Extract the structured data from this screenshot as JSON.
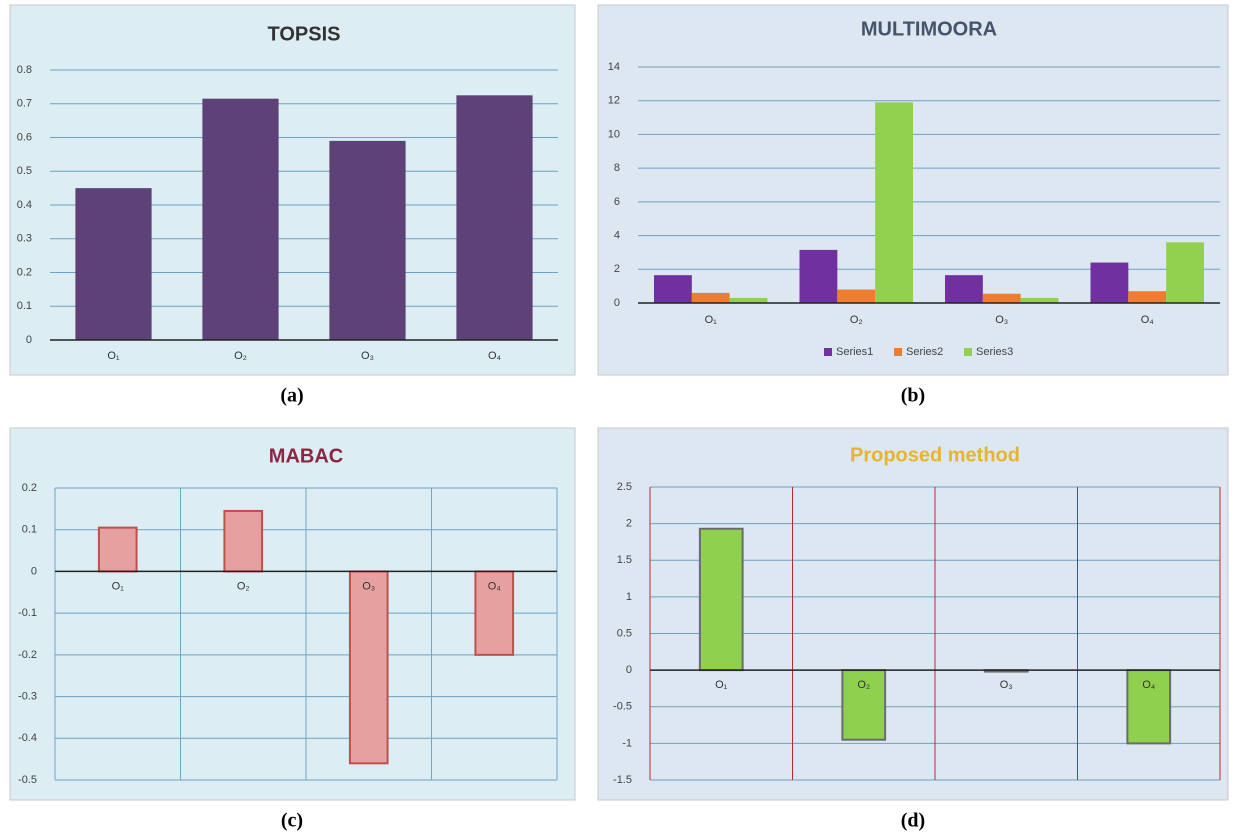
{
  "chart_data": [
    {
      "type": "bar",
      "title": "TOPSIS",
      "caption": "(a)",
      "categories": [
        "O₁",
        "O₂",
        "O₃",
        "O₄"
      ],
      "values": [
        0.45,
        0.715,
        0.59,
        0.725
      ],
      "color": "#5e4177",
      "title_color": "#333333",
      "ylim": [
        0,
        0.8
      ],
      "yticks": [
        0,
        0.1,
        0.2,
        0.3,
        0.4,
        0.5,
        0.6,
        0.7,
        0.8
      ],
      "grid": true
    },
    {
      "type": "grouped-bar",
      "title": "MULTIMOORA",
      "caption": "(b)",
      "categories": [
        "O₁",
        "O₂",
        "O₃",
        "O₄"
      ],
      "series": [
        {
          "name": "Series1",
          "color": "#7030a0",
          "values": [
            1.65,
            3.15,
            1.65,
            2.4
          ]
        },
        {
          "name": "Series2",
          "color": "#ed7d31",
          "values": [
            0.6,
            0.8,
            0.55,
            0.7
          ]
        },
        {
          "name": "Series3",
          "color": "#92d050",
          "values": [
            0.3,
            11.9,
            0.3,
            3.6
          ]
        }
      ],
      "title_color": "#44546a",
      "ylim": [
        0,
        14
      ],
      "yticks": [
        0,
        2,
        4,
        6,
        8,
        10,
        12,
        14
      ],
      "grid": true,
      "legend": "bottom"
    },
    {
      "type": "bar",
      "title": "MABAC",
      "caption": "(c)",
      "categories": [
        "O₁",
        "O₂",
        "O₃",
        "O₄"
      ],
      "values": [
        0.105,
        0.145,
        -0.46,
        -0.2
      ],
      "color": "#e6a0a0",
      "edgecolor": "#c0504d",
      "title_color": "#8b2742",
      "ylim": [
        -0.5,
        0.2
      ],
      "yticks": [
        -0.5,
        -0.4,
        -0.3,
        -0.2,
        -0.1,
        0,
        0.1,
        0.2
      ],
      "grid": true,
      "category_dividers": "#6fa8c4"
    },
    {
      "type": "bar",
      "title": "Proposed method",
      "caption": "(d)",
      "categories": [
        "O₁",
        "O₂",
        "O₃",
        "O₄"
      ],
      "values": [
        1.93,
        -0.95,
        -0.02,
        -1.0
      ],
      "color": "#8fd14f",
      "edgecolor": "#6b6b6b",
      "title_color": "#e6b530",
      "ylim": [
        -1.5,
        2.5
      ],
      "yticks": [
        -1.5,
        -1,
        -0.5,
        0,
        0.5,
        1,
        1.5,
        2,
        2.5
      ],
      "grid": true,
      "category_dividers": "#c0282d"
    }
  ]
}
